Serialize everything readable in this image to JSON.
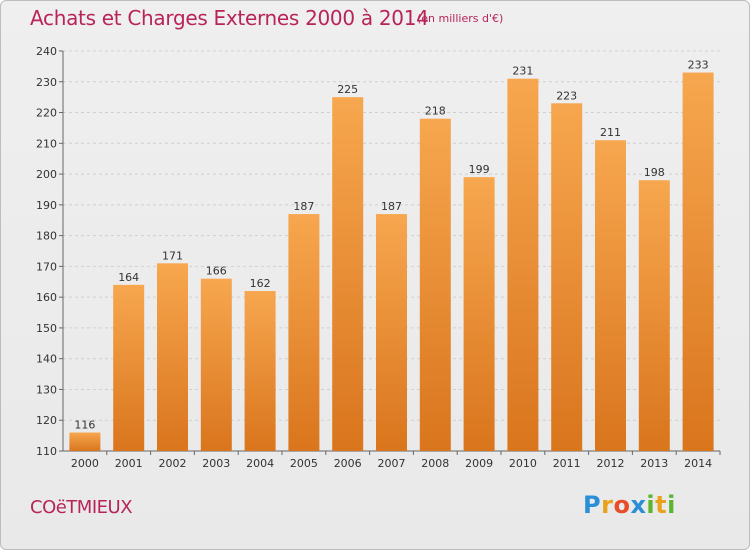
{
  "header": {
    "title": "Achats et Charges Externes 2000 à 2014",
    "subtitle": "(en milliers d'€)"
  },
  "footer": {
    "commune": "COëTMIEUX",
    "logo_letters": [
      "P",
      "r",
      "o",
      "x",
      "i",
      "t",
      "i"
    ],
    "logo_colors": [
      "#2a8fd6",
      "#e8a21c",
      "#e84c2b",
      "#2a8fd6",
      "#5cb531",
      "#e8a21c",
      "#5cb531"
    ]
  },
  "colors": {
    "bar_light": "#f7a74f",
    "bar_dark": "#d9751d",
    "accent": "#b8245a"
  },
  "chart_data": {
    "type": "bar",
    "categories": [
      "2000",
      "2001",
      "2002",
      "2003",
      "2004",
      "2005",
      "2006",
      "2007",
      "2008",
      "2009",
      "2010",
      "2011",
      "2012",
      "2013",
      "2014"
    ],
    "values": [
      116,
      164,
      171,
      166,
      162,
      187,
      225,
      187,
      218,
      199,
      231,
      223,
      211,
      198,
      233
    ],
    "ylim": [
      110,
      240
    ],
    "yticks": [
      110,
      120,
      130,
      140,
      150,
      160,
      170,
      180,
      190,
      200,
      210,
      220,
      230,
      240
    ],
    "grid": true,
    "title": "Achats et Charges Externes 2000 à 2014",
    "xlabel": "",
    "ylabel": ""
  }
}
